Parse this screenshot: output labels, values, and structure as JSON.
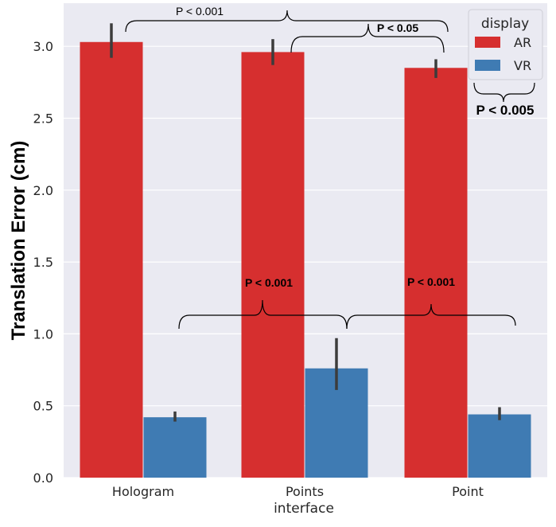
{
  "chart_data": {
    "type": "bar",
    "xlabel": "interface",
    "ylabel": "Translation Error (cm)",
    "categories": [
      "Hologram",
      "Points",
      "Point"
    ],
    "ylim": [
      0,
      3.3
    ],
    "yticks": [
      "0.0",
      "0.5",
      "1.0",
      "1.5",
      "2.0",
      "2.5",
      "3.0"
    ],
    "grid": true,
    "legend_title": "display",
    "legend_position": "top-right",
    "series": [
      {
        "name": "AR",
        "color": "#d62f2f",
        "values": [
          3.03,
          2.96,
          2.85
        ],
        "err_low": [
          2.92,
          2.87,
          2.78
        ],
        "err_high": [
          3.16,
          3.05,
          2.91
        ]
      },
      {
        "name": "VR",
        "color": "#3f7bb3",
        "values": [
          0.42,
          0.76,
          0.44
        ],
        "err_low": [
          0.39,
          0.61,
          0.4
        ],
        "err_high": [
          0.46,
          0.97,
          0.49
        ]
      }
    ],
    "annotations": [
      {
        "text": "P < 0.001",
        "style": "plain"
      },
      {
        "text": "P < 0.05",
        "style": "bold"
      },
      {
        "text": "P < 0.005",
        "style": "big"
      },
      {
        "text": "P < 0.001",
        "style": "bold"
      },
      {
        "text": "P < 0.001",
        "style": "bold"
      }
    ]
  }
}
